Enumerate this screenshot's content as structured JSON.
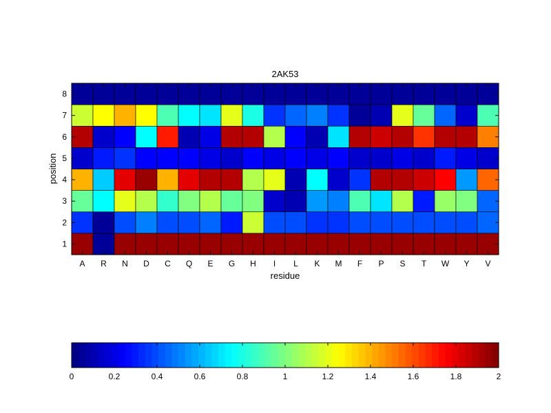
{
  "chart_data": {
    "type": "heatmap",
    "title": "2AK53",
    "xlabel": "residue",
    "ylabel": "position",
    "x_categories": [
      "A",
      "R",
      "N",
      "D",
      "C",
      "Q",
      "E",
      "G",
      "H",
      "I",
      "L",
      "K",
      "M",
      "F",
      "P",
      "S",
      "T",
      "W",
      "Y",
      "V"
    ],
    "y_categories": [
      "1",
      "2",
      "3",
      "4",
      "5",
      "6",
      "7",
      "8"
    ],
    "colormap": "jet",
    "clim": [
      0,
      2
    ],
    "colorbar": {
      "orientation": "horizontal",
      "placement": "bottom",
      "ticks": [
        0,
        0.2,
        0.4,
        0.6,
        0.8,
        1,
        1.2,
        1.4,
        1.6,
        1.8,
        2
      ],
      "tick_labels": [
        "0",
        "0.2",
        "0.4",
        "0.6",
        "0.8",
        "1",
        "1.2",
        "1.4",
        "1.6",
        "1.8",
        "2"
      ]
    },
    "values": [
      [
        1.95,
        0.05,
        1.95,
        1.95,
        1.95,
        1.95,
        1.95,
        1.95,
        1.95,
        1.95,
        1.95,
        1.95,
        1.95,
        1.95,
        1.95,
        1.95,
        1.95,
        1.95,
        1.95,
        1.95
      ],
      [
        0.35,
        0.05,
        0.4,
        0.5,
        0.4,
        0.4,
        0.45,
        0.3,
        1.15,
        0.4,
        0.4,
        0.35,
        0.35,
        0.4,
        0.4,
        0.4,
        0.4,
        0.4,
        0.4,
        0.45
      ],
      [
        0.95,
        0.75,
        1.2,
        1.1,
        0.85,
        1.0,
        1.1,
        0.95,
        1.0,
        0.15,
        0.1,
        0.55,
        0.5,
        0.9,
        0.7,
        1.1,
        0.3,
        1.05,
        1.0,
        0.45
      ],
      [
        1.4,
        0.65,
        1.8,
        1.95,
        1.4,
        1.8,
        1.9,
        1.9,
        1.1,
        1.2,
        0.1,
        0.75,
        0.15,
        0.35,
        1.9,
        1.9,
        1.85,
        1.75,
        0.55,
        1.55
      ],
      [
        0.15,
        0.3,
        0.35,
        0.25,
        0.25,
        0.25,
        0.2,
        0.15,
        0.25,
        0.2,
        0.25,
        0.2,
        0.25,
        0.15,
        0.15,
        0.2,
        0.15,
        0.3,
        0.2,
        0.15
      ],
      [
        1.9,
        0.15,
        0.25,
        0.75,
        1.7,
        0.1,
        0.2,
        1.9,
        1.9,
        1.1,
        0.25,
        0.1,
        0.7,
        1.9,
        1.85,
        1.9,
        1.65,
        1.9,
        1.9,
        1.5
      ],
      [
        1.15,
        1.25,
        1.4,
        1.25,
        0.9,
        0.75,
        0.7,
        1.2,
        0.8,
        0.35,
        0.45,
        0.5,
        0.35,
        0.05,
        0.1,
        1.2,
        0.95,
        0.45,
        0.15,
        0.9
      ],
      [
        0.05,
        0.05,
        0.05,
        0.05,
        0.05,
        0.05,
        0.05,
        0.05,
        0.05,
        0.05,
        0.05,
        0.05,
        0.05,
        0.05,
        0.05,
        0.05,
        0.05,
        0.05,
        0.05,
        0.05
      ]
    ]
  }
}
